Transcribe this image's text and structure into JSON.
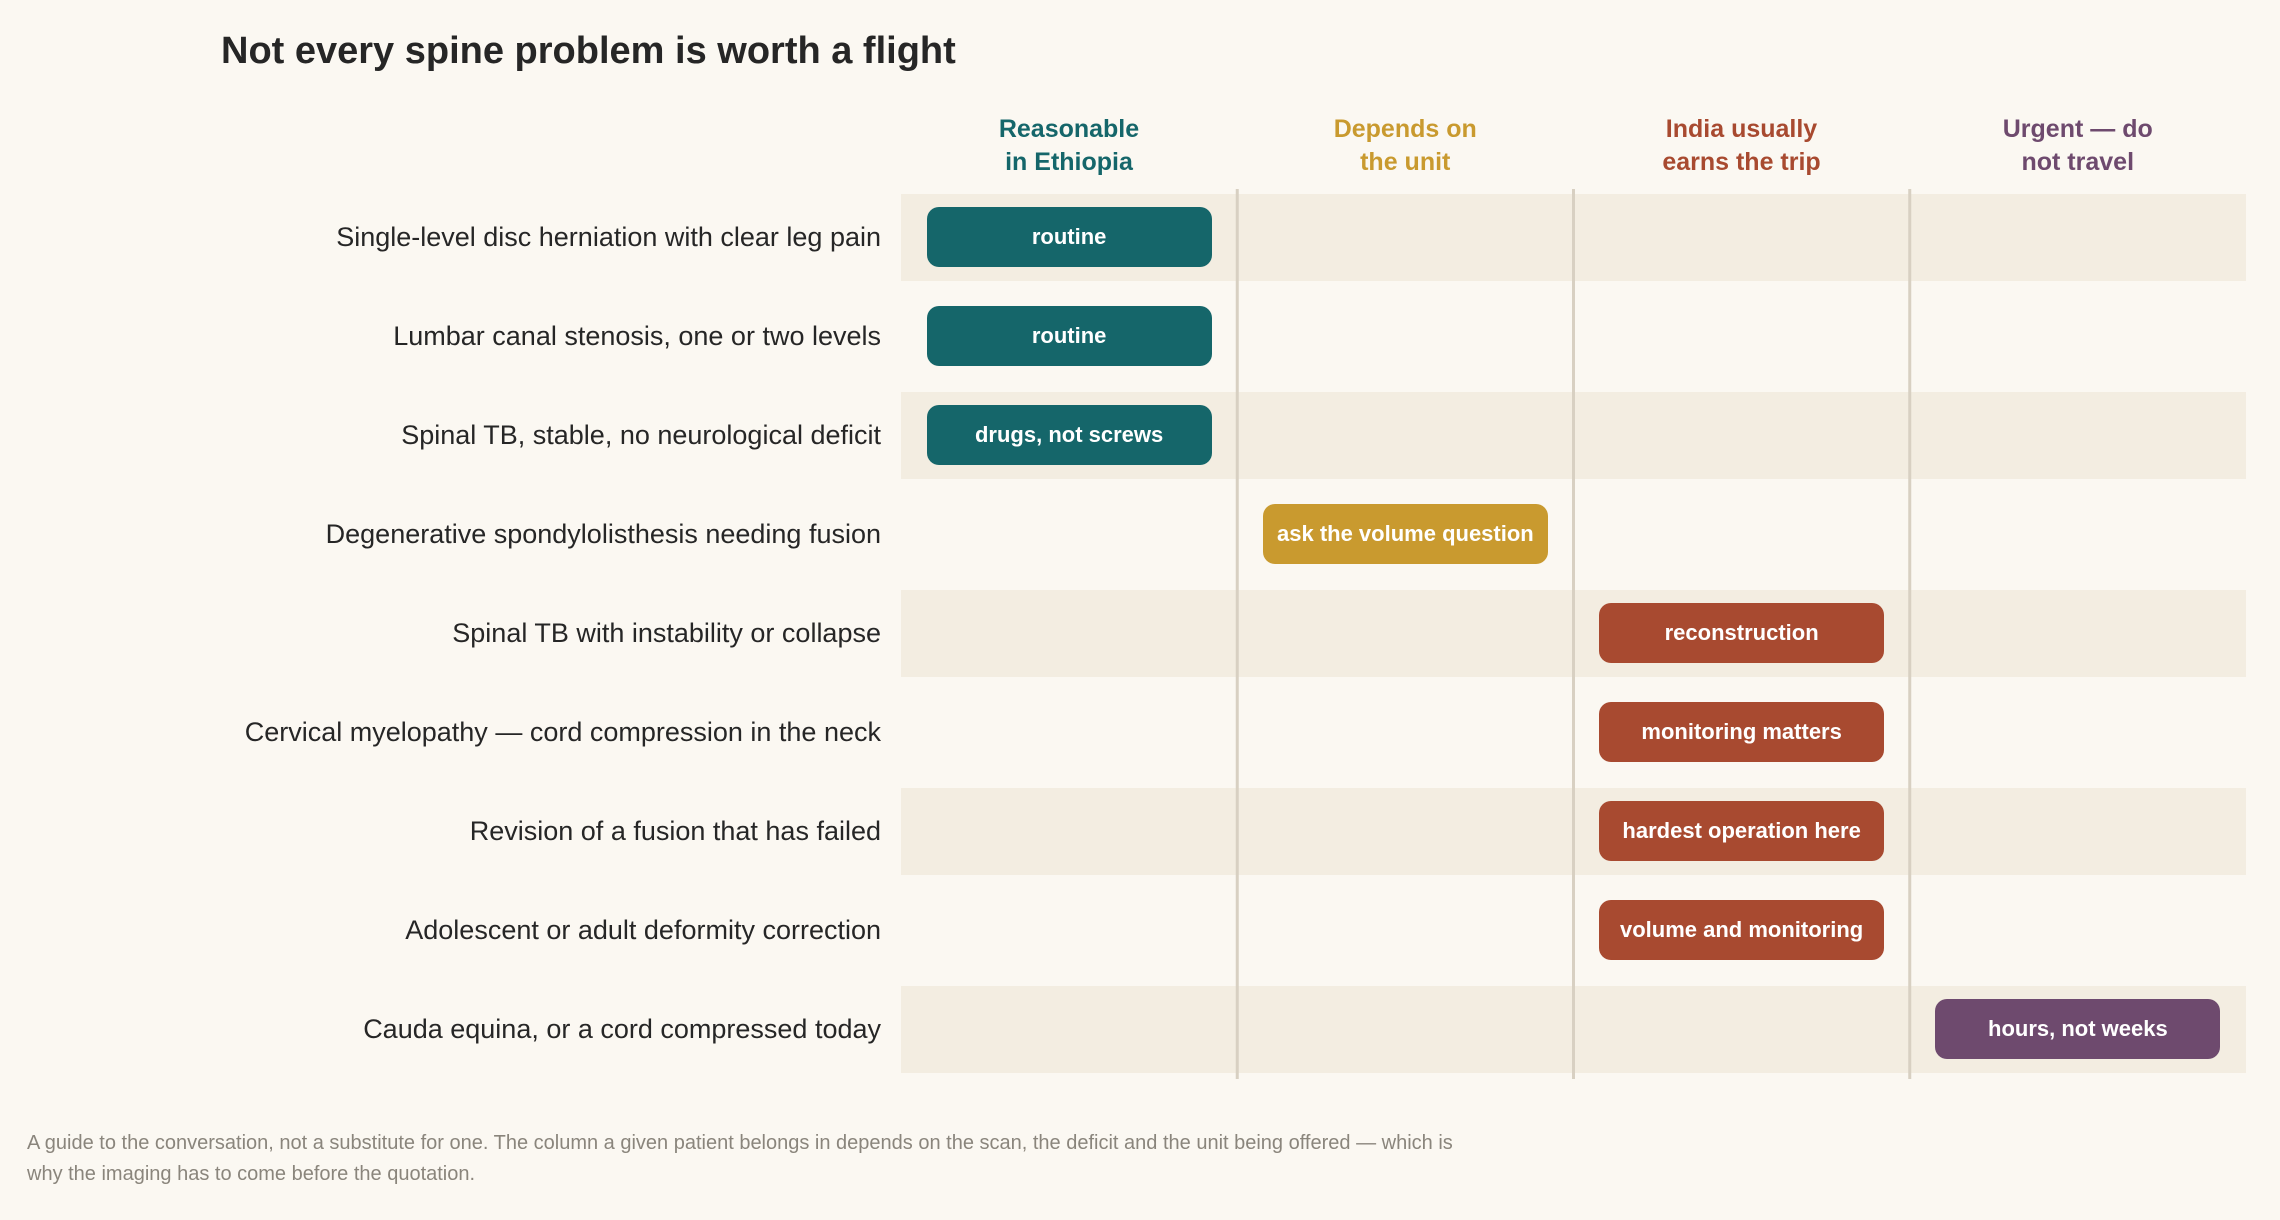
{
  "title": "Not every spine problem is worth a flight",
  "footnote": "A guide to the conversation, not a substitute for one. The column a given patient belongs in depends on the scan, the deficit and the unit being offered — which is why the imaging has to come before the quotation.",
  "colors": {
    "reasonable": "#15666a",
    "depends": "#c99a2f",
    "india": "#a84a30",
    "urgent": "#6e4a6e",
    "band": "#f3ede1",
    "divider": "#d8d0c2"
  },
  "chart_data": {
    "type": "table",
    "columns": [
      {
        "key": "reasonable",
        "line1": "Reasonable",
        "line2": "in Ethiopia"
      },
      {
        "key": "depends",
        "line1": "Depends on",
        "line2": "the unit"
      },
      {
        "key": "india",
        "line1": "India usually",
        "line2": "earns the trip"
      },
      {
        "key": "urgent",
        "line1": "Urgent — do",
        "line2": "not travel"
      }
    ],
    "rows": [
      {
        "label": "Single-level disc herniation with clear leg pain",
        "column": 0,
        "note": "routine"
      },
      {
        "label": "Lumbar canal stenosis, one or two levels",
        "column": 0,
        "note": "routine"
      },
      {
        "label": "Spinal TB, stable, no neurological deficit",
        "column": 0,
        "note": "drugs, not screws"
      },
      {
        "label": "Degenerative spondylolisthesis needing fusion",
        "column": 1,
        "note": "ask the volume question"
      },
      {
        "label": "Spinal TB with instability or collapse",
        "column": 2,
        "note": "reconstruction"
      },
      {
        "label": "Cervical myelopathy — cord compression in the neck",
        "column": 2,
        "note": "monitoring matters"
      },
      {
        "label": "Revision of a fusion that has failed",
        "column": 2,
        "note": "hardest operation here"
      },
      {
        "label": "Adolescent or adult deformity correction",
        "column": 2,
        "note": "volume and monitoring"
      },
      {
        "label": "Cauda equina, or a cord compressed today",
        "column": 3,
        "note": "hours, not weeks"
      }
    ]
  }
}
